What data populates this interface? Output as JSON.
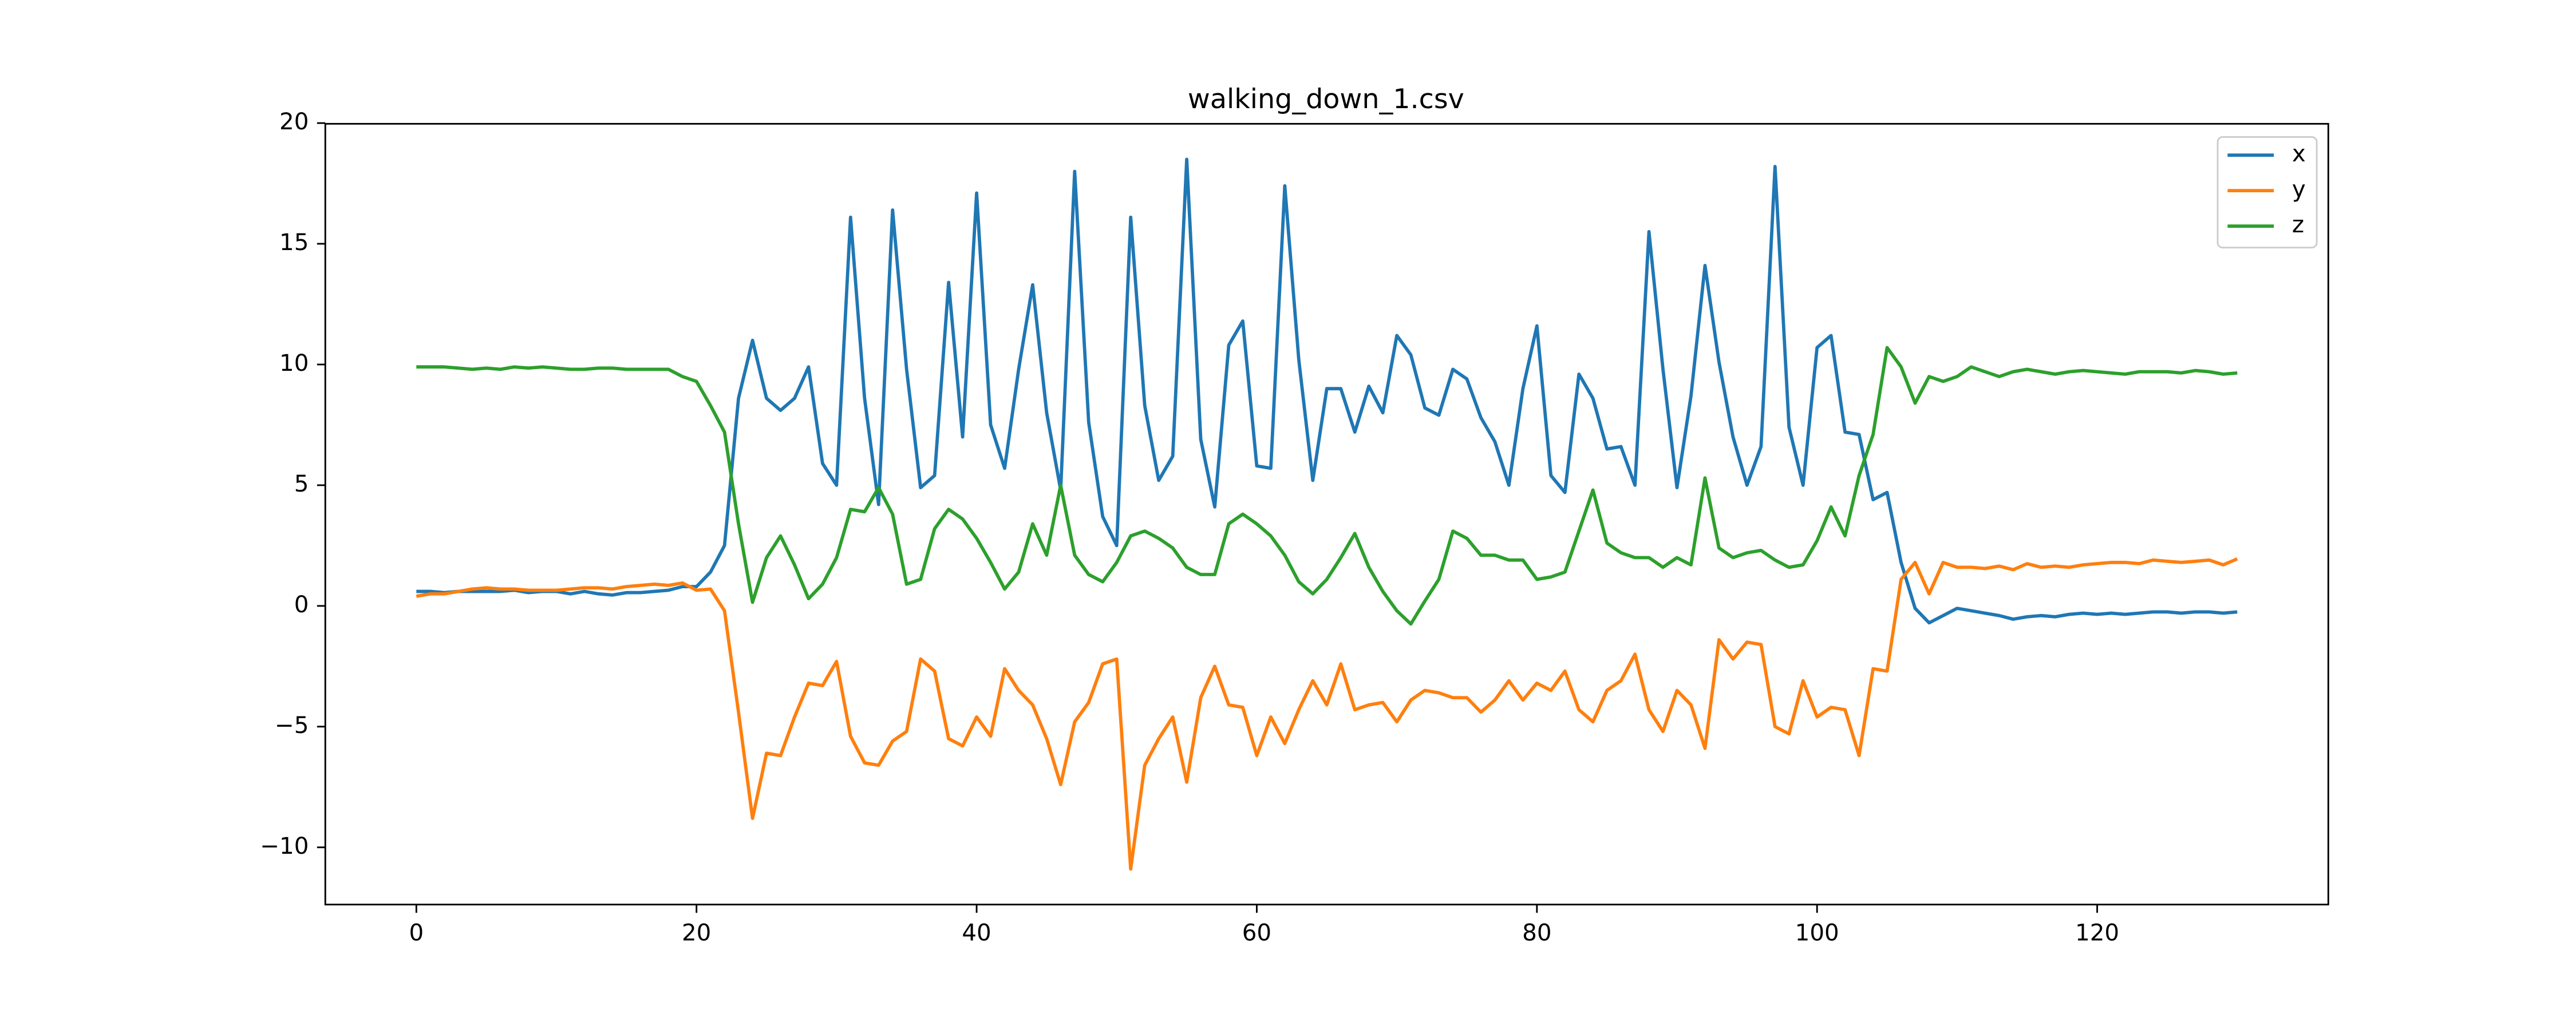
{
  "chart_data": {
    "type": "line",
    "title": "walking_down_1.csv",
    "x": [
      0,
      1,
      2,
      3,
      4,
      5,
      6,
      7,
      8,
      9,
      10,
      11,
      12,
      13,
      14,
      15,
      16,
      17,
      18,
      19,
      20,
      21,
      22,
      23,
      24,
      25,
      26,
      27,
      28,
      29,
      30,
      31,
      32,
      33,
      34,
      35,
      36,
      37,
      38,
      39,
      40,
      41,
      42,
      43,
      44,
      45,
      46,
      47,
      48,
      49,
      50,
      51,
      52,
      53,
      54,
      55,
      56,
      57,
      58,
      59,
      60,
      61,
      62,
      63,
      64,
      65,
      66,
      67,
      68,
      69,
      70,
      71,
      72,
      73,
      74,
      75,
      76,
      77,
      78,
      79,
      80,
      81,
      82,
      83,
      84,
      85,
      86,
      87,
      88,
      89,
      90,
      91,
      92,
      93,
      94,
      95,
      96,
      97,
      98,
      99,
      100,
      101,
      102,
      103,
      104,
      105,
      106,
      107,
      108,
      109,
      110,
      111,
      112,
      113,
      114,
      115,
      116,
      117,
      118,
      119,
      120,
      121,
      122,
      123,
      124,
      125,
      126,
      127,
      128,
      129,
      130
    ],
    "series": [
      {
        "name": "x",
        "color": "#1f77b4",
        "values": [
          0.6,
          0.6,
          0.55,
          0.6,
          0.6,
          0.6,
          0.6,
          0.65,
          0.55,
          0.6,
          0.6,
          0.5,
          0.6,
          0.5,
          0.45,
          0.55,
          0.55,
          0.6,
          0.65,
          0.8,
          0.8,
          1.4,
          2.5,
          8.6,
          11.0,
          8.6,
          8.1,
          8.6,
          9.9,
          5.9,
          5.0,
          16.1,
          8.6,
          4.2,
          16.4,
          9.8,
          4.9,
          5.4,
          13.4,
          7.0,
          17.1,
          7.5,
          5.7,
          9.8,
          13.3,
          8.0,
          4.8,
          18.0,
          7.6,
          3.7,
          2.5,
          16.1,
          8.3,
          5.2,
          6.2,
          18.5,
          6.9,
          4.1,
          10.8,
          11.8,
          5.8,
          5.7,
          17.4,
          10.2,
          5.2,
          9.0,
          9.0,
          7.2,
          9.1,
          8.0,
          11.2,
          10.4,
          8.2,
          7.9,
          9.8,
          9.4,
          7.8,
          6.8,
          5.0,
          9.0,
          11.6,
          5.4,
          4.7,
          9.6,
          8.6,
          6.5,
          6.6,
          5.0,
          15.5,
          9.8,
          4.9,
          8.7,
          14.1,
          10.1,
          7.0,
          5.0,
          6.6,
          18.2,
          7.4,
          5.0,
          10.7,
          11.2,
          7.2,
          7.1,
          4.4,
          4.7,
          1.8,
          -0.1,
          -0.7,
          -0.4,
          -0.1,
          -0.2,
          -0.3,
          -0.4,
          -0.55,
          -0.45,
          -0.4,
          -0.45,
          -0.35,
          -0.3,
          -0.35,
          -0.3,
          -0.35,
          -0.3,
          -0.25,
          -0.25,
          -0.3,
          -0.25,
          -0.25,
          -0.3,
          -0.25
        ]
      },
      {
        "name": "y",
        "color": "#ff7f0e",
        "values": [
          0.4,
          0.5,
          0.5,
          0.6,
          0.7,
          0.75,
          0.7,
          0.7,
          0.65,
          0.65,
          0.65,
          0.7,
          0.75,
          0.75,
          0.7,
          0.8,
          0.85,
          0.9,
          0.85,
          0.95,
          0.65,
          0.7,
          -0.2,
          -4.4,
          -8.8,
          -6.1,
          -6.2,
          -4.6,
          -3.2,
          -3.3,
          -2.3,
          -5.4,
          -6.5,
          -6.6,
          -5.6,
          -5.2,
          -2.2,
          -2.7,
          -5.5,
          -5.8,
          -4.6,
          -5.4,
          -2.6,
          -3.5,
          -4.1,
          -5.5,
          -7.4,
          -4.8,
          -4.0,
          -2.4,
          -2.2,
          -10.9,
          -6.6,
          -5.5,
          -4.6,
          -7.3,
          -3.8,
          -2.5,
          -4.1,
          -4.2,
          -6.2,
          -4.6,
          -5.7,
          -4.3,
          -3.1,
          -4.1,
          -2.4,
          -4.3,
          -4.1,
          -4.0,
          -4.8,
          -3.9,
          -3.5,
          -3.6,
          -3.8,
          -3.8,
          -4.4,
          -3.9,
          -3.1,
          -3.9,
          -3.2,
          -3.5,
          -2.7,
          -4.3,
          -4.8,
          -3.5,
          -3.1,
          -2.0,
          -4.3,
          -5.2,
          -3.5,
          -4.1,
          -5.9,
          -1.4,
          -2.2,
          -1.5,
          -1.6,
          -5.0,
          -5.3,
          -3.1,
          -4.6,
          -4.2,
          -4.3,
          -6.2,
          -2.6,
          -2.7,
          1.1,
          1.8,
          0.5,
          1.8,
          1.6,
          1.6,
          1.55,
          1.65,
          1.5,
          1.75,
          1.6,
          1.65,
          1.6,
          1.7,
          1.75,
          1.8,
          1.8,
          1.75,
          1.9,
          1.85,
          1.8,
          1.85,
          1.9,
          1.7,
          1.95
        ]
      },
      {
        "name": "z",
        "color": "#2ca02c",
        "values": [
          9.9,
          9.9,
          9.9,
          9.85,
          9.8,
          9.85,
          9.8,
          9.9,
          9.85,
          9.9,
          9.85,
          9.8,
          9.8,
          9.85,
          9.85,
          9.8,
          9.8,
          9.8,
          9.8,
          9.5,
          9.3,
          8.3,
          7.2,
          3.4,
          0.15,
          2.0,
          2.9,
          1.7,
          0.3,
          0.9,
          2.0,
          4.0,
          3.9,
          4.9,
          3.8,
          0.9,
          1.1,
          3.2,
          4.0,
          3.6,
          2.8,
          1.8,
          0.7,
          1.4,
          3.4,
          2.1,
          5.0,
          2.1,
          1.3,
          1.0,
          1.8,
          2.9,
          3.1,
          2.8,
          2.4,
          1.6,
          1.3,
          1.3,
          3.4,
          3.8,
          3.4,
          2.9,
          2.1,
          1.0,
          0.5,
          1.1,
          2.0,
          3.0,
          1.6,
          0.6,
          -0.2,
          -0.75,
          0.2,
          1.1,
          3.1,
          2.8,
          2.1,
          2.1,
          1.9,
          1.9,
          1.1,
          1.2,
          1.4,
          3.1,
          4.8,
          2.6,
          2.2,
          2.0,
          2.0,
          1.6,
          2.0,
          1.7,
          5.3,
          2.4,
          2.0,
          2.2,
          2.3,
          1.9,
          1.6,
          1.7,
          2.7,
          4.1,
          2.9,
          5.4,
          7.1,
          10.7,
          9.9,
          8.4,
          9.5,
          9.3,
          9.5,
          9.9,
          9.7,
          9.5,
          9.7,
          9.8,
          9.7,
          9.6,
          9.7,
          9.75,
          9.7,
          9.65,
          9.6,
          9.7,
          9.7,
          9.7,
          9.65,
          9.75,
          9.7,
          9.6,
          9.65
        ]
      }
    ],
    "xlim": [
      -6.5,
      136.5
    ],
    "ylim": [
      -12.37,
      19.97
    ],
    "xticks": [
      0,
      20,
      40,
      60,
      80,
      100,
      120
    ],
    "yticks": [
      {
        "value": -10,
        "label": "−10"
      },
      {
        "value": -5,
        "label": "−5"
      },
      0,
      5,
      10,
      15,
      20
    ],
    "legend": "upper right"
  }
}
